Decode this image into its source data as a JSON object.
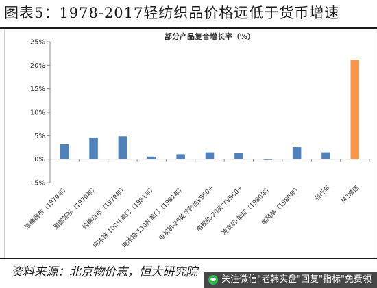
{
  "header": {
    "title": "图表5：1978-2017轻纺织品价格远低于货币增速"
  },
  "footer": {
    "source": "资料来源：北京物价志，恒大研究院"
  },
  "watermark": {
    "text": "关注微信\"老韩实盘\"回复\"指标\"免费领",
    "icon": "wechat-icon"
  },
  "chart_data": {
    "type": "bar",
    "title": "部分产品复合增长率（%）",
    "xlabel": "",
    "ylabel": "",
    "categories": [
      "涤棉细布（1979年）",
      "男圆领衫（1979年）",
      "纯棉白布（1979年）",
      "电冰箱-100升单门（1981年）",
      "电冰箱-130升单门（1981年）",
      "电视机-20英寸彩色VS60+",
      "电视机-20英寸VS60+",
      "洗衣机-单缸（1980年）",
      "电风扇（1980年）",
      "自行车",
      "M2增速"
    ],
    "values": [
      3.2,
      4.6,
      4.9,
      0.6,
      1.1,
      1.5,
      1.3,
      -0.2,
      2.6,
      1.5,
      21.2
    ],
    "colors": [
      "#4f81bd",
      "#4f81bd",
      "#4f81bd",
      "#4f81bd",
      "#4f81bd",
      "#4f81bd",
      "#4f81bd",
      "#4f81bd",
      "#4f81bd",
      "#4f81bd",
      "#f79646"
    ],
    "ylim": [
      -5,
      25
    ],
    "yticks": [
      "-5%",
      "0%",
      "5%",
      "10%",
      "15%",
      "20%",
      "25%"
    ],
    "ytick_values": [
      -5,
      0,
      5,
      10,
      15,
      20,
      25
    ],
    "grid": false,
    "legend": "none"
  }
}
